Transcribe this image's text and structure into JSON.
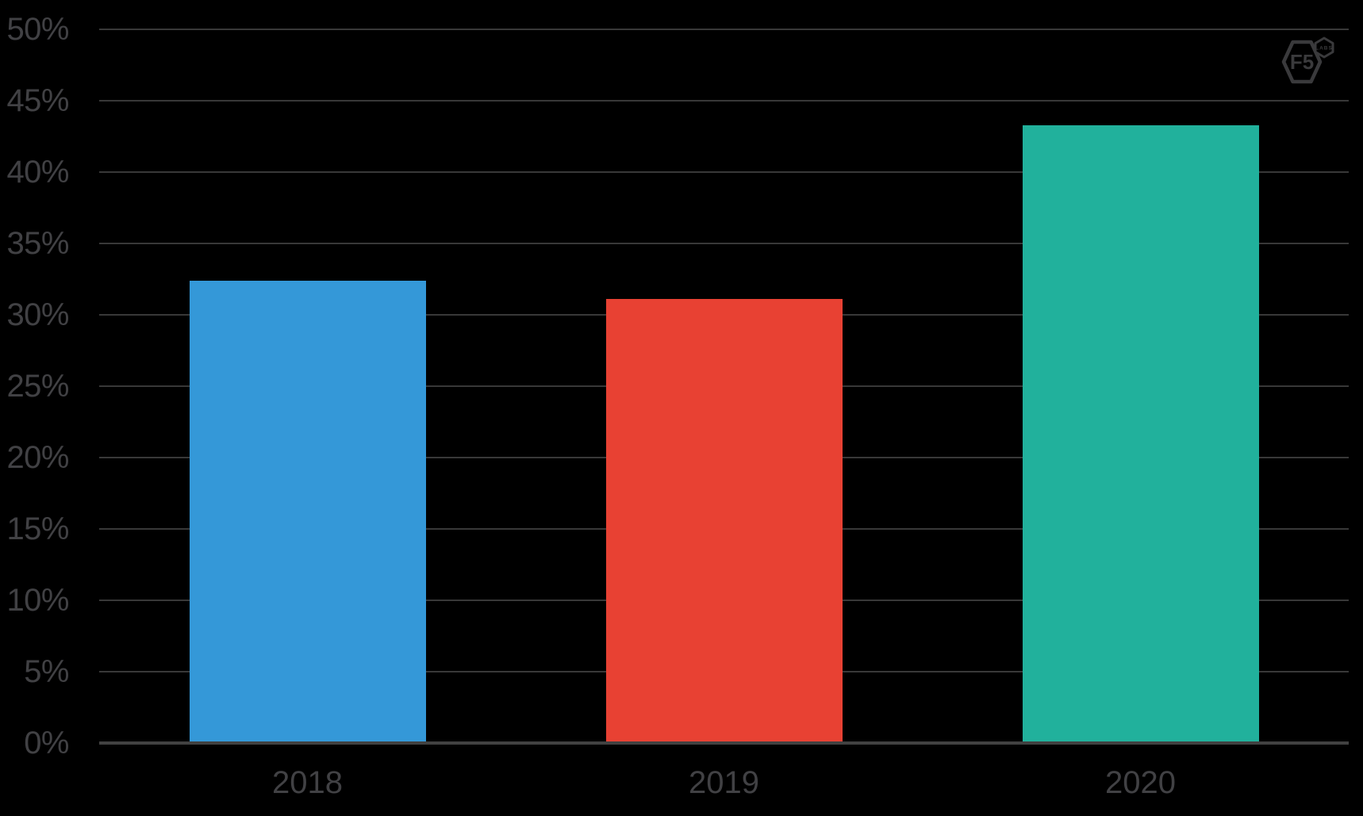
{
  "chart_data": {
    "type": "bar",
    "categories": [
      "2018",
      "2019",
      "2020"
    ],
    "values": [
      32.4,
      31.1,
      43.3
    ],
    "series_colors": [
      "#3498d8",
      "#e84133",
      "#21b19c"
    ],
    "title": "",
    "xlabel": "",
    "ylabel": "",
    "ylim": [
      0,
      50
    ],
    "ytick_step": 5,
    "ytick_labels": [
      "0%",
      "5%",
      "10%",
      "15%",
      "20%",
      "25%",
      "30%",
      "35%",
      "40%",
      "45%",
      "50%"
    ],
    "grid": true,
    "legend": "none",
    "background": "#000000",
    "gridline_color": "#383838",
    "axis_line_color": "#414141",
    "label_color": "#414144"
  },
  "logo": {
    "name": "F5 Labs",
    "main_text": "F5",
    "sub_text": "LABS",
    "color": "#3a3a3c"
  }
}
